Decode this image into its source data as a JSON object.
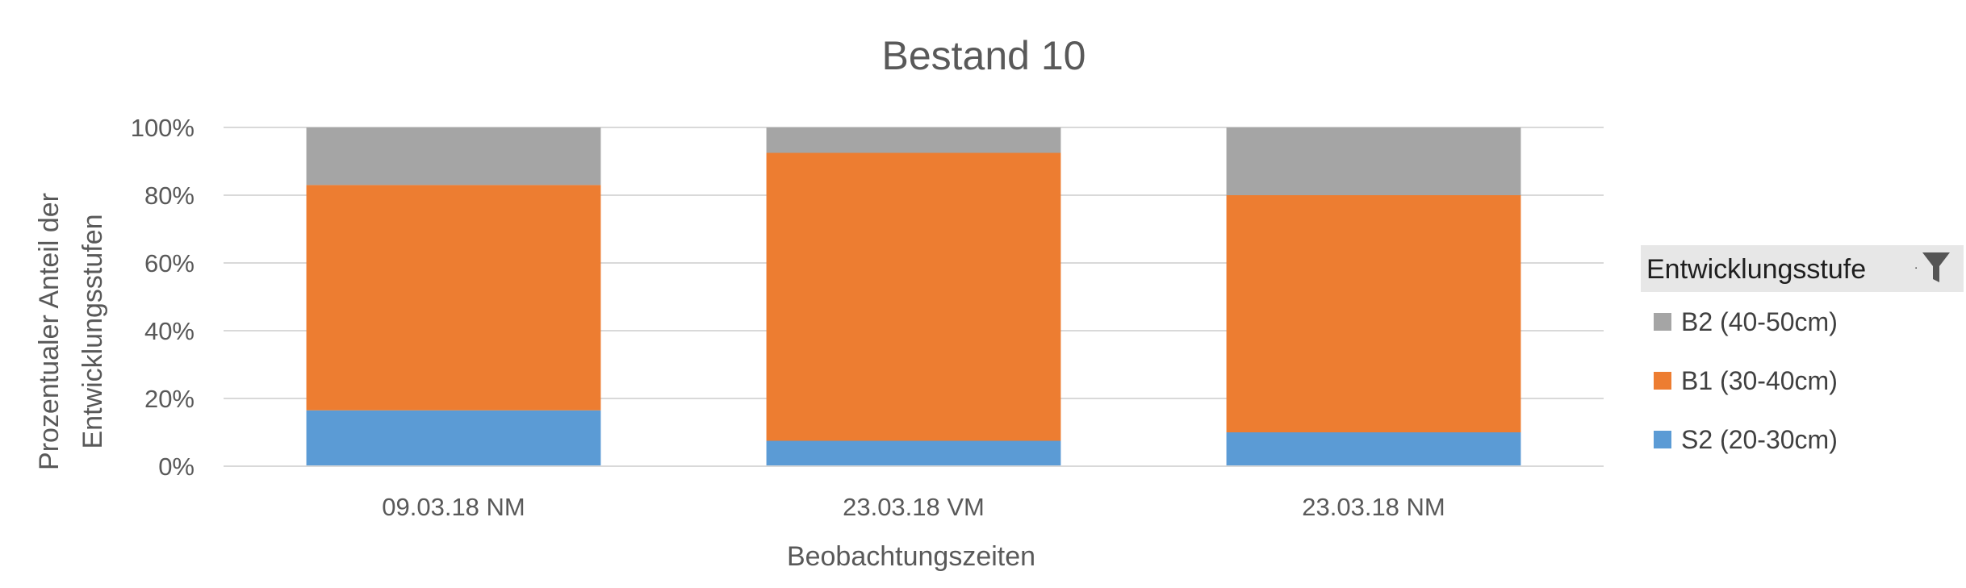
{
  "chart_data": {
    "type": "bar",
    "stacked": true,
    "stack_mode": "percent",
    "title": "Bestand 10",
    "xlabel": "Beobachtungszeiten",
    "ylabel_lines": [
      "Prozentualer Anteil der",
      "Entwicklungsstufen"
    ],
    "categories": [
      "09.03.18 NM",
      "23.03.18 VM",
      "23.03.18 NM"
    ],
    "ylim": [
      0,
      100
    ],
    "yticks": [
      "0%",
      "20%",
      "40%",
      "60%",
      "80%",
      "100%"
    ],
    "yticks_values": [
      0,
      20,
      40,
      60,
      80,
      100
    ],
    "grid": true,
    "legend_placement": "right",
    "legend_title": "Entwicklungsstufe",
    "series": [
      {
        "name": "S2 (20-30cm)",
        "color": "#5B9BD5",
        "values": [
          16.5,
          7.5,
          10
        ]
      },
      {
        "name": "B1 (30-40cm)",
        "color": "#ED7D31",
        "values": [
          66.5,
          85,
          70
        ]
      },
      {
        "name": "B2 (40-50cm)",
        "color": "#A5A5A5",
        "values": [
          17,
          7.5,
          20
        ]
      }
    ]
  }
}
